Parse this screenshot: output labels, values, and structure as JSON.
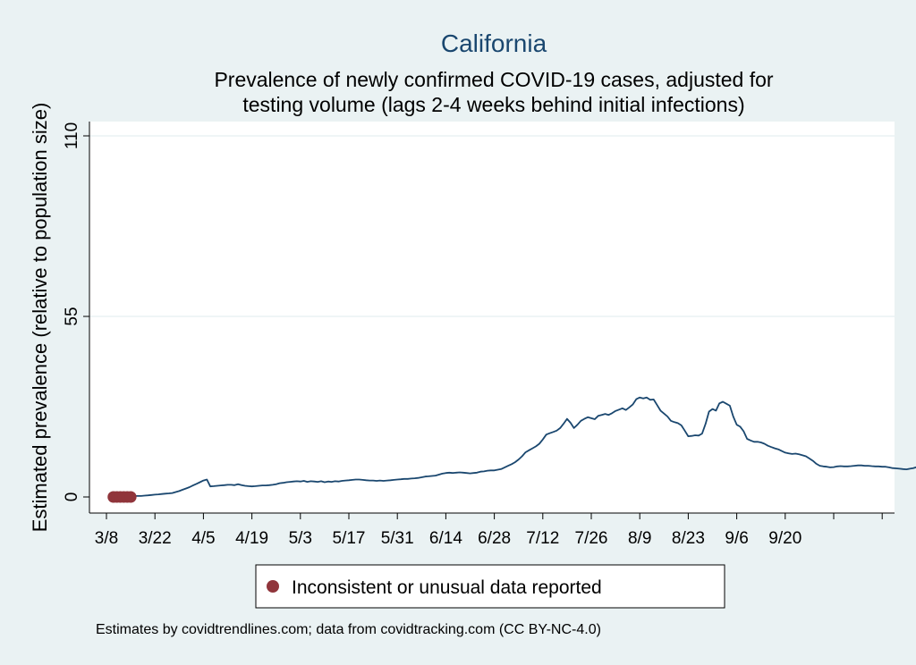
{
  "chart_data": {
    "type": "line",
    "title": "California",
    "subtitle": [
      "Prevalence of newly confirmed COVID-19 cases, adjusted for",
      "testing volume (lags 2-4 weeks behind initial infections)"
    ],
    "xlabel": "",
    "ylabel": "Estimated prevalence (relative to population size)",
    "ylim": [
      0,
      110
    ],
    "yticks": [
      0,
      55,
      110
    ],
    "ytick_labels": [
      "0",
      "55",
      "110"
    ],
    "x_start_date": "3/8",
    "x_day_range": [
      -1,
      226
    ],
    "xticks_days": [
      0,
      14,
      28,
      42,
      56,
      70,
      84,
      98,
      112,
      126,
      140,
      154,
      168,
      182,
      196,
      210,
      224
    ],
    "xtick_labels": [
      "3/8",
      "3/22",
      "4/5",
      "4/19",
      "5/3",
      "5/17",
      "5/31",
      "6/14",
      "6/28",
      "7/12",
      "7/26",
      "8/9",
      "8/23",
      "9/6",
      "9/20",
      "",
      ""
    ],
    "grid": "horizontal",
    "line_color": "#1a476f",
    "marker_color": "#90353b",
    "series": [
      {
        "name": "Estimated prevalence",
        "start_day": 2,
        "values": [
          0.1,
          0.2,
          0.2,
          0.3,
          0.3,
          0.3,
          0.3,
          0.3,
          0.3,
          0.4,
          0.5,
          0.6,
          0.7,
          0.8,
          0.9,
          1.0,
          1.1,
          1.2,
          1.5,
          1.8,
          2.2,
          2.6,
          3.0,
          3.5,
          4.0,
          4.5,
          5.0,
          5.3,
          3.2,
          3.3,
          3.4,
          3.5,
          3.6,
          3.7,
          3.7,
          3.6,
          3.9,
          3.6,
          3.4,
          3.3,
          3.2,
          3.3,
          3.4,
          3.5,
          3.5,
          3.6,
          3.7,
          3.9,
          4.2,
          4.3,
          4.5,
          4.6,
          4.7,
          4.8,
          4.7,
          4.9,
          4.6,
          4.8,
          4.7,
          4.6,
          4.8,
          4.5,
          4.7,
          4.6,
          4.8,
          4.7,
          4.9,
          5.0,
          5.1,
          5.2,
          5.3,
          5.3,
          5.2,
          5.1,
          5.0,
          5.0,
          4.9,
          5.0,
          4.9,
          5.0,
          5.1,
          5.2,
          5.3,
          5.4,
          5.5,
          5.5,
          5.6,
          5.7,
          5.8,
          6.0,
          6.2,
          6.3,
          6.4,
          6.5,
          6.8,
          7.1,
          7.3,
          7.4,
          7.3,
          7.4,
          7.5,
          7.4,
          7.3,
          7.2,
          7.3,
          7.4,
          7.7,
          7.8,
          8.0,
          8.1,
          8.1,
          8.3,
          8.5,
          9.0,
          9.5,
          10.0,
          10.6,
          11.4,
          12.4,
          13.6,
          14.2,
          14.8,
          15.4,
          16.2,
          17.5,
          19.0,
          19.4,
          19.8,
          20.2,
          21.0,
          22.3,
          23.8,
          22.6,
          21.0,
          22.0,
          23.2,
          23.8,
          24.3,
          24.0,
          23.7,
          24.7,
          25.0,
          25.3,
          25.0,
          25.5,
          26.2,
          26.6,
          27.0,
          26.5,
          27.3,
          28.2,
          29.8,
          30.3,
          30.0,
          30.3,
          29.6,
          29.7,
          28.0,
          26.3,
          25.4,
          24.5,
          23.2,
          22.8,
          22.5,
          21.8,
          20.2,
          18.5,
          18.6,
          18.8,
          18.7,
          19.3,
          22.3,
          26.0,
          26.8,
          26.3,
          28.5,
          29.0,
          28.4,
          27.8,
          24.5,
          22.0,
          21.4,
          20.0,
          17.7,
          17.2,
          16.8,
          16.8,
          16.6,
          16.2,
          15.6,
          15.2,
          14.8,
          14.5,
          14.0,
          13.5,
          13.3,
          13.1,
          13.2,
          13.0,
          12.7,
          12.4,
          11.7,
          11.0,
          10.1,
          9.5,
          9.3,
          9.2,
          9.0,
          9.1,
          9.3,
          9.4,
          9.3,
          9.3,
          9.4,
          9.5,
          9.6,
          9.6,
          9.5,
          9.5,
          9.4,
          9.3,
          9.3,
          9.2,
          9.2,
          9.0,
          8.8,
          8.7,
          8.6,
          8.5,
          8.4,
          8.6,
          8.8,
          9.1,
          9.3,
          9.5,
          9.6,
          9.5,
          9.3,
          9.0,
          8.6,
          8.2
        ]
      }
    ],
    "flagged_points": {
      "name": "Inconsistent or unusual data reported",
      "days": [
        2,
        3,
        4,
        5,
        6,
        7
      ],
      "values": [
        0,
        0,
        0,
        0,
        0,
        0
      ]
    },
    "legend": {
      "placement": "bottom",
      "entries": [
        "Inconsistent or unusual data reported"
      ]
    },
    "note": "Estimates by covidtrendlines.com; data from covidtracking.com (CC BY-NC-4.0)"
  }
}
